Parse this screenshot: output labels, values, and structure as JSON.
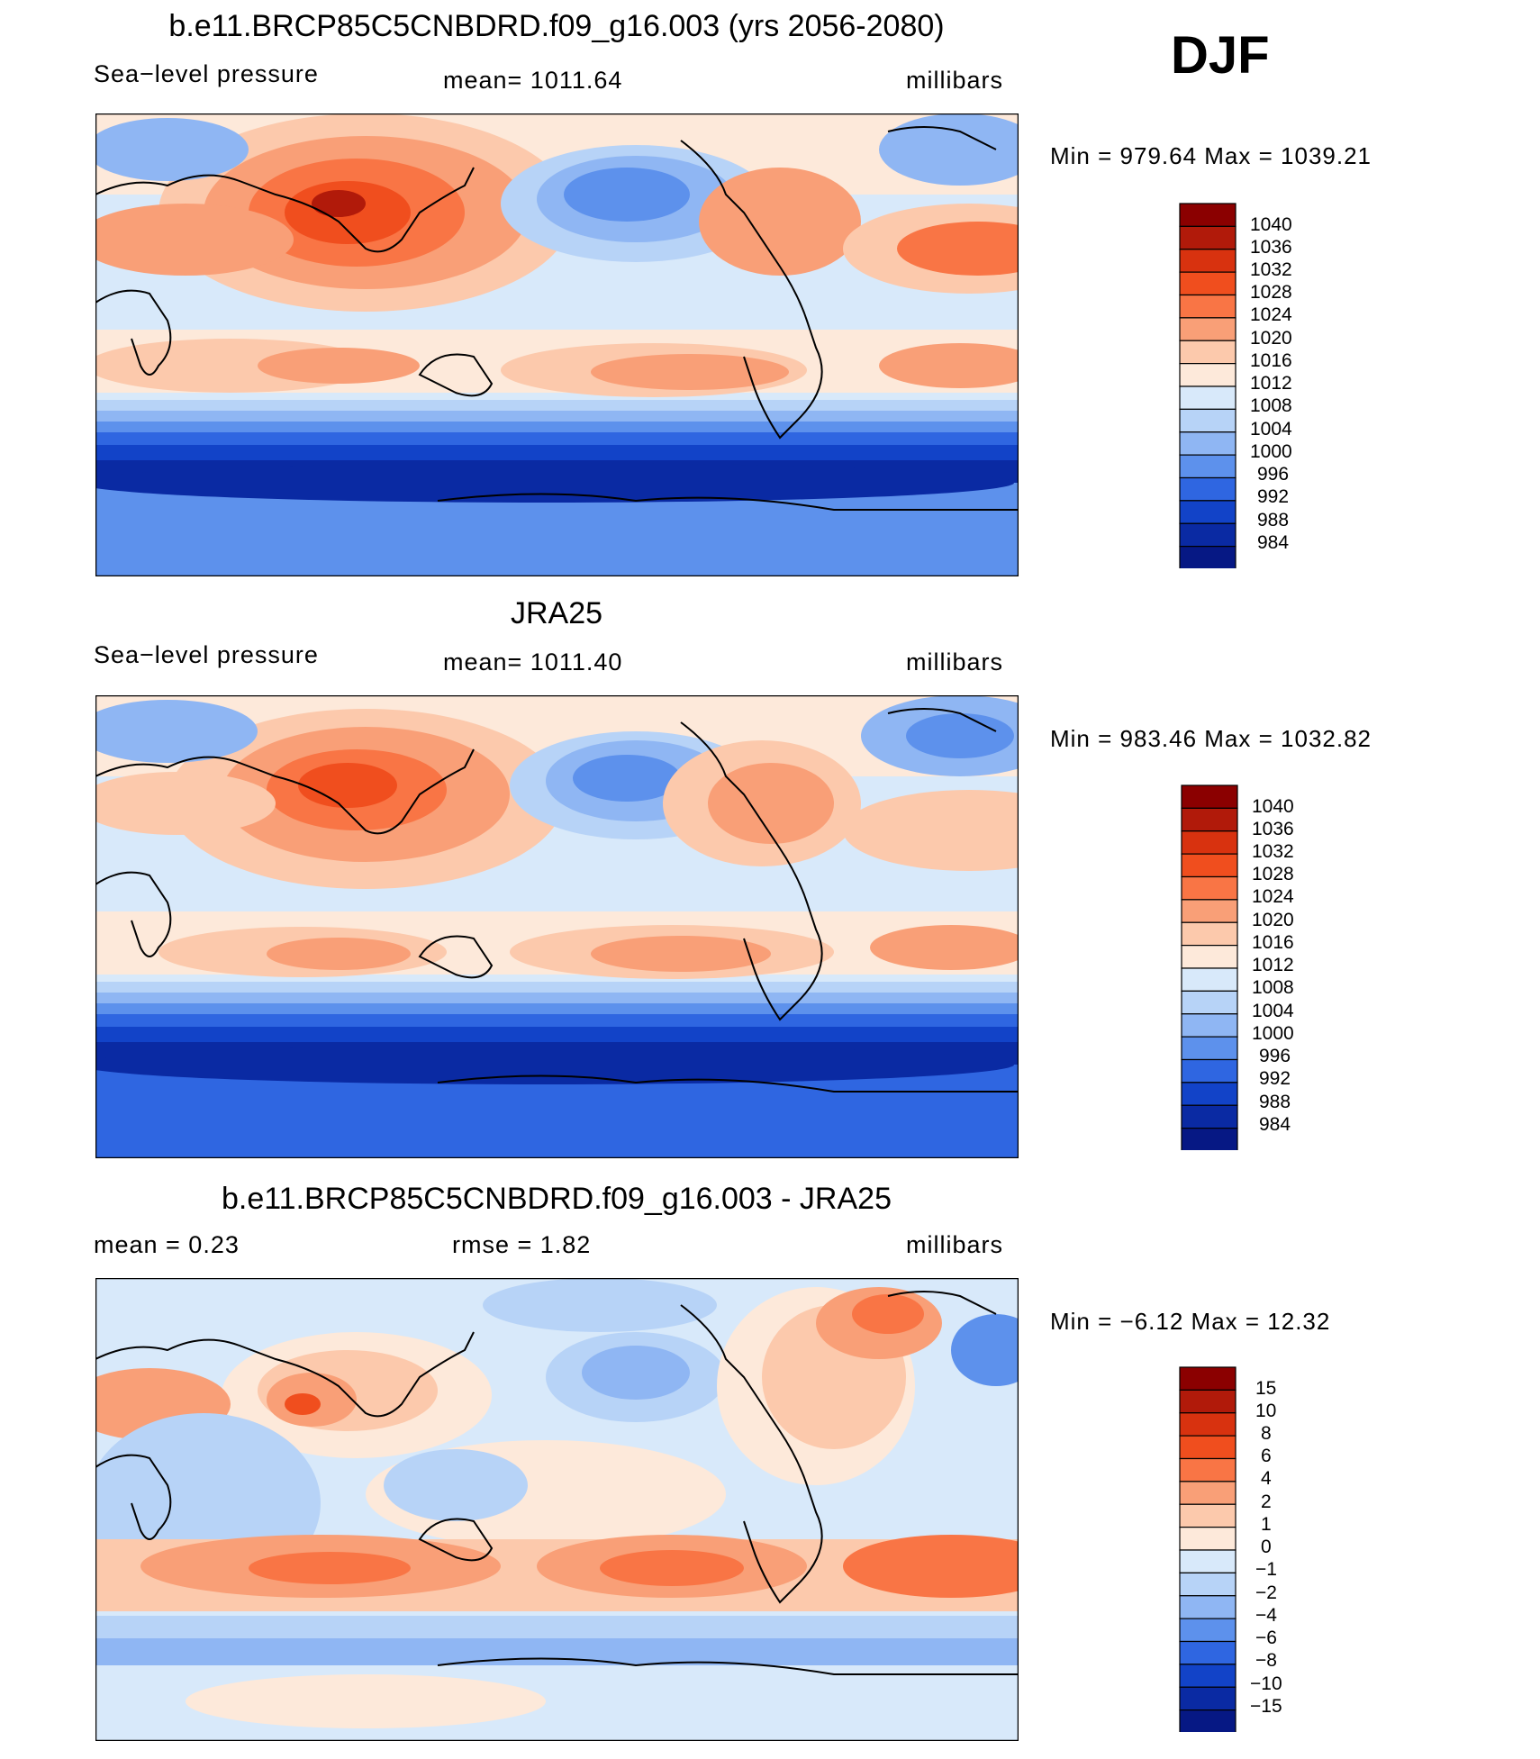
{
  "season": "DJF",
  "panels": [
    {
      "title": "b.e11.BRCP85C5CNBDRD.f09_g16.003 (yrs 2056-2080)",
      "left": "Sea−level pressure",
      "center": "mean=  1011.64",
      "right": "millibars",
      "minmax": "Min  =  979.64  Max  =  1039.21",
      "levels": [
        "1040",
        "1036",
        "1032",
        "1028",
        "1024",
        "1020",
        "1016",
        "1012",
        "1008",
        "1004",
        "1000",
        "996",
        "992",
        "988",
        "984"
      ]
    },
    {
      "title": "JRA25",
      "left": "Sea−level pressure",
      "center": "mean=  1011.40",
      "right": "millibars",
      "minmax": "Min  =  983.46  Max  =  1032.82",
      "levels": [
        "1040",
        "1036",
        "1032",
        "1028",
        "1024",
        "1020",
        "1016",
        "1012",
        "1008",
        "1004",
        "1000",
        "996",
        "992",
        "988",
        "984"
      ]
    },
    {
      "title": "b.e11.BRCP85C5CNBDRD.f09_g16.003 - JRA25",
      "left": "mean  =     0.23",
      "center": "rmse  =     1.82",
      "right": "millibars",
      "minmax": "Min  =    −6.12  Max  =    12.32",
      "levels": [
        "15",
        "10",
        "8",
        "6",
        "4",
        "2",
        "1",
        "0",
        "−1",
        "−2",
        "−4",
        "−6",
        "−8",
        "−10",
        "−15"
      ]
    }
  ],
  "colors": {
    "palette": [
      "#8b0000",
      "#b11a0a",
      "#d8320f",
      "#f04e1e",
      "#f97545",
      "#f99f77",
      "#fcc9ac",
      "#fde9da",
      "#d8e9fa",
      "#b7d3f7",
      "#8fb6f3",
      "#5d91ec",
      "#2f66e1",
      "#1243c8",
      "#0a2aa3",
      "#061884"
    ],
    "land_line": "#000000",
    "frame": "#000000"
  }
}
